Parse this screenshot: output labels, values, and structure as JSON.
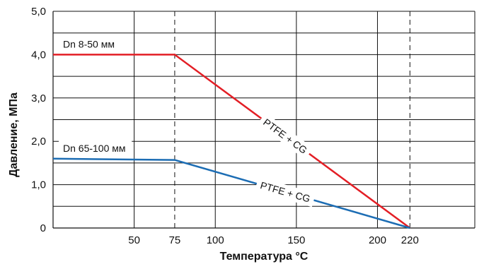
{
  "chart_data": {
    "type": "line",
    "xlabel": "Температура °С",
    "ylabel": "Давление, МПа",
    "xlim": [
      0,
      260
    ],
    "ylim": [
      0,
      5
    ],
    "x_ticks": [
      50,
      75,
      100,
      150,
      200,
      220
    ],
    "x_tick_labels": [
      "50",
      "75",
      "100",
      "150",
      "200",
      "220"
    ],
    "y_ticks": [
      0,
      1,
      2,
      3,
      4,
      5
    ],
    "y_tick_labels": [
      "0",
      "1,0",
      "2,0",
      "3,0",
      "4,0",
      "5,0"
    ],
    "x_gridlines_solid": [
      50,
      100,
      150,
      200,
      260
    ],
    "x_gridlines_dashed": [
      75,
      220
    ],
    "y_gridlines": [
      0.5,
      1,
      1.5,
      2,
      2.5,
      3,
      3.5,
      4,
      4.5,
      5
    ],
    "grid": true,
    "series": [
      {
        "name": "Dn 8-50 мм",
        "color": "#e31e25",
        "x": [
          0,
          75,
          220
        ],
        "y": [
          4.0,
          4.0,
          0.0
        ],
        "annotation": "PTFE + CG"
      },
      {
        "name": "Dn 65-100 мм",
        "color": "#1c6db4",
        "x": [
          0,
          75,
          220
        ],
        "y": [
          1.6,
          1.57,
          0.0
        ],
        "annotation": "PTFE + CG"
      }
    ]
  }
}
